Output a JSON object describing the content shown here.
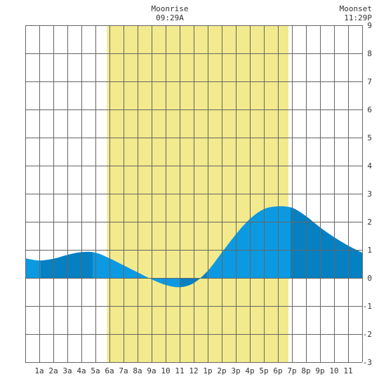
{
  "chart_data": {
    "type": "area",
    "x_unit": "hour",
    "xlim": [
      0,
      24
    ],
    "ylim": [
      -3,
      9
    ],
    "grid": true,
    "x_ticks": [
      {
        "x": 1,
        "label": "1a"
      },
      {
        "x": 2,
        "label": "2a"
      },
      {
        "x": 3,
        "label": "3a"
      },
      {
        "x": 4,
        "label": "4a"
      },
      {
        "x": 5,
        "label": "5a"
      },
      {
        "x": 6,
        "label": "6a"
      },
      {
        "x": 7,
        "label": "7a"
      },
      {
        "x": 8,
        "label": "8a"
      },
      {
        "x": 9,
        "label": "9a"
      },
      {
        "x": 10,
        "label": "10"
      },
      {
        "x": 11,
        "label": "11"
      },
      {
        "x": 12,
        "label": "12"
      },
      {
        "x": 13,
        "label": "1p"
      },
      {
        "x": 14,
        "label": "2p"
      },
      {
        "x": 15,
        "label": "3p"
      },
      {
        "x": 16,
        "label": "4p"
      },
      {
        "x": 17,
        "label": "5p"
      },
      {
        "x": 18,
        "label": "6p"
      },
      {
        "x": 19,
        "label": "7p"
      },
      {
        "x": 20,
        "label": "8p"
      },
      {
        "x": 21,
        "label": "9p"
      },
      {
        "x": 22,
        "label": "10"
      },
      {
        "x": 23,
        "label": "11"
      }
    ],
    "y_ticks": [
      {
        "y": 9,
        "label": "9"
      },
      {
        "y": 8,
        "label": "8"
      },
      {
        "y": 7,
        "label": "7"
      },
      {
        "y": 6,
        "label": "6"
      },
      {
        "y": 5,
        "label": "5"
      },
      {
        "y": 4,
        "label": "4"
      },
      {
        "y": 3,
        "label": "3"
      },
      {
        "y": 2,
        "label": "2"
      },
      {
        "y": 1,
        "label": "1"
      },
      {
        "y": 0,
        "label": "0"
      },
      {
        "y": -1,
        "label": "-1"
      },
      {
        "y": -2,
        "label": "-2"
      },
      {
        "y": -3,
        "label": "-3"
      }
    ],
    "daylight": {
      "start": 5.82,
      "end": 18.75
    },
    "shade_bands": [
      [
        1.1,
        4.8
      ],
      [
        11.0,
        12.95
      ],
      [
        18.9,
        24
      ]
    ],
    "tide": {
      "x": [
        0,
        1,
        2,
        3,
        4,
        5,
        6,
        7,
        8,
        9,
        10,
        11,
        12,
        13,
        14,
        15,
        16,
        17,
        18,
        19,
        20,
        21,
        22,
        23,
        24
      ],
      "y": [
        0.7,
        0.62,
        0.68,
        0.82,
        0.92,
        0.9,
        0.7,
        0.45,
        0.2,
        -0.05,
        -0.25,
        -0.33,
        -0.18,
        0.25,
        0.9,
        1.55,
        2.1,
        2.45,
        2.55,
        2.5,
        2.2,
        1.8,
        1.45,
        1.15,
        0.9
      ]
    },
    "annotations": [
      {
        "id": "moonrise",
        "x": 10.3,
        "title": "Moonrise",
        "time": "09:29A",
        "anchor": "middle"
      },
      {
        "id": "moonset",
        "x": 24,
        "title": "Moonset",
        "time": "11:29P",
        "anchor": "end"
      }
    ],
    "colors": {
      "background": "#ffffff",
      "daylight": "#f2ea8c",
      "tide_light": "#0b9ae2",
      "tide_dark": "#0580c2",
      "grid": "#666666",
      "text": "#333333"
    }
  }
}
